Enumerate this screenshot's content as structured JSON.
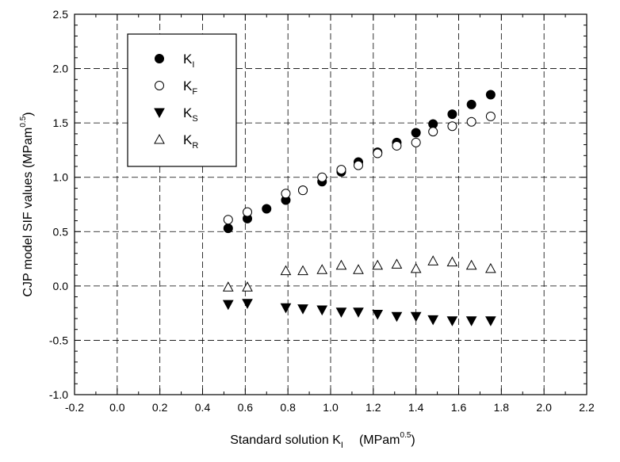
{
  "chart_data": {
    "type": "scatter",
    "xlabel": {
      "main": "Standard solution K",
      "sub": "I",
      "unit": "(MPam",
      "sup": "0.5",
      "close": ")"
    },
    "ylabel": {
      "main": "CJP model SIF values  (MPam",
      "sup": "0.5",
      "close": ")"
    },
    "xlim": [
      -0.2,
      2.2
    ],
    "ylim": [
      -1.0,
      2.5
    ],
    "xticks": [
      "-0.2",
      "0.0",
      "0.2",
      "0.4",
      "0.6",
      "0.8",
      "1.0",
      "1.2",
      "1.4",
      "1.6",
      "1.8",
      "2.0",
      "2.2"
    ],
    "yticks": [
      "-1.0",
      "-0.5",
      "0.0",
      "0.5",
      "1.0",
      "1.5",
      "2.0",
      "2.5"
    ],
    "grid": true,
    "grid_style": "dashed",
    "legend_position": "top-left",
    "series": [
      {
        "name": "K",
        "sub": "I",
        "marker": "filled-circle",
        "x": [
          0.52,
          0.61,
          0.7,
          0.79,
          0.87,
          0.96,
          1.05,
          1.13,
          1.22,
          1.31,
          1.4,
          1.48,
          1.57,
          1.66,
          1.75
        ],
        "y": [
          0.53,
          0.62,
          0.71,
          0.79,
          0.88,
          0.96,
          1.05,
          1.14,
          1.23,
          1.32,
          1.41,
          1.49,
          1.58,
          1.67,
          1.76
        ]
      },
      {
        "name": "K",
        "sub": "F",
        "marker": "open-circle",
        "x": [
          0.52,
          0.61,
          0.79,
          0.87,
          0.96,
          1.05,
          1.13,
          1.22,
          1.31,
          1.4,
          1.48,
          1.57,
          1.66,
          1.75
        ],
        "y": [
          0.61,
          0.68,
          0.85,
          0.88,
          1.0,
          1.07,
          1.11,
          1.22,
          1.29,
          1.32,
          1.42,
          1.47,
          1.51,
          1.56
        ]
      },
      {
        "name": "K",
        "sub": "S",
        "marker": "filled-triangle-down",
        "x": [
          0.52,
          0.61,
          0.79,
          0.87,
          0.96,
          1.05,
          1.13,
          1.22,
          1.31,
          1.4,
          1.48,
          1.57,
          1.66,
          1.75
        ],
        "y": [
          -0.17,
          -0.16,
          -0.2,
          -0.21,
          -0.22,
          -0.24,
          -0.24,
          -0.26,
          -0.28,
          -0.28,
          -0.31,
          -0.32,
          -0.32,
          -0.32
        ]
      },
      {
        "name": "K",
        "sub": "R",
        "marker": "open-triangle-up",
        "x": [
          0.52,
          0.61,
          0.79,
          0.87,
          0.96,
          1.05,
          1.13,
          1.22,
          1.31,
          1.4,
          1.48,
          1.57,
          1.66,
          1.75
        ],
        "y": [
          -0.01,
          -0.01,
          0.14,
          0.14,
          0.15,
          0.19,
          0.15,
          0.19,
          0.2,
          0.16,
          0.23,
          0.22,
          0.19,
          0.16
        ]
      }
    ]
  }
}
